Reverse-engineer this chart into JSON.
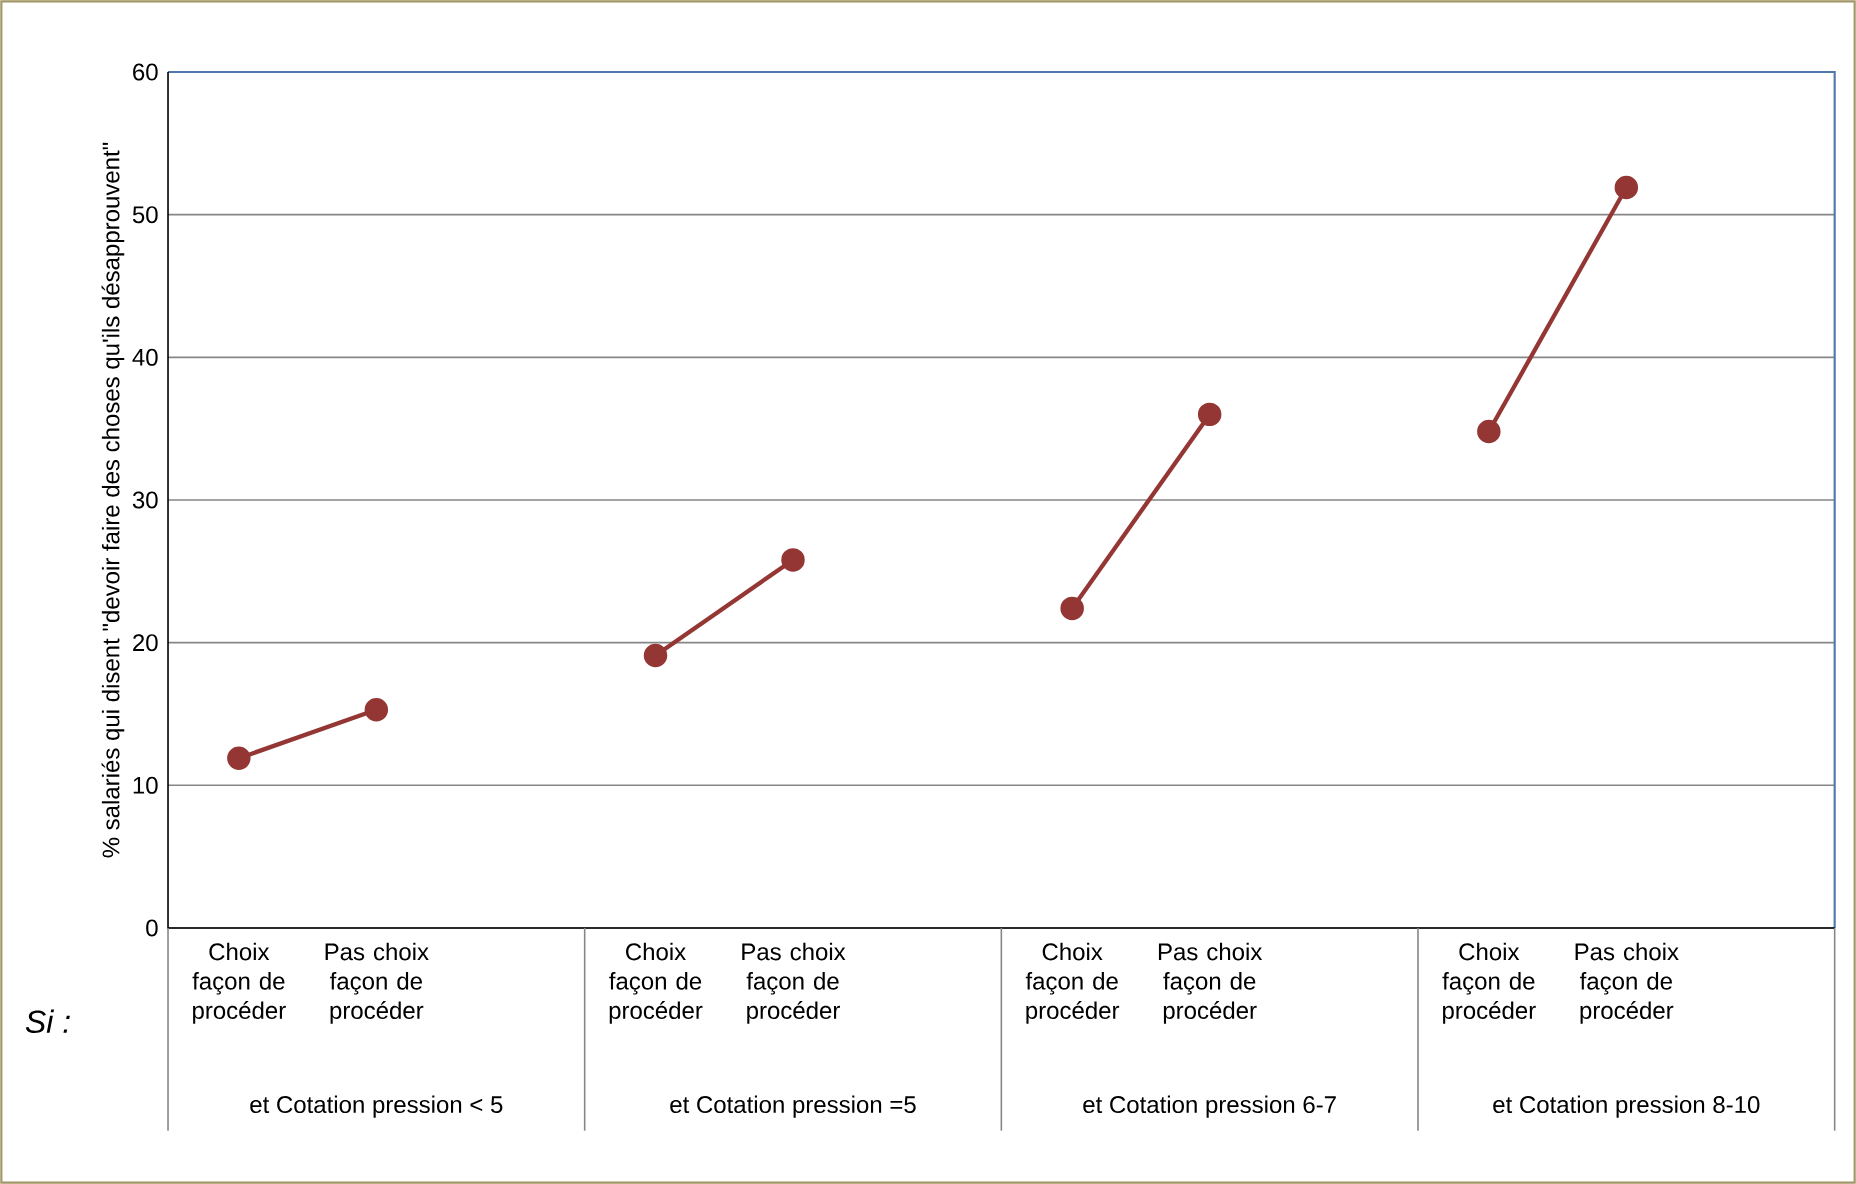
{
  "chart_data": {
    "type": "line",
    "ylabel": "% salariés qui disent \"devoir faire des choses qu'ils désapprouvent\"",
    "categories": [
      "Choix façon de procéder",
      "Pas choix façon de procéder",
      "Choix façon de procéder",
      "Pas choix façon de procéder",
      "Choix façon de procéder",
      "Pas choix façon de procéder",
      "Choix façon de procéder",
      "Pas choix façon de procéder"
    ],
    "series": [
      {
        "color": "#943634",
        "values": [
          11.9,
          15.3,
          null,
          null,
          null,
          null,
          null,
          null
        ]
      },
      {
        "color": "#943634",
        "values": [
          null,
          null,
          19.1,
          25.8,
          null,
          null,
          null,
          null
        ]
      },
      {
        "color": "#943634",
        "values": [
          null,
          null,
          null,
          null,
          22.4,
          36.0,
          null,
          null
        ]
      },
      {
        "color": "#943634",
        "values": [
          null,
          null,
          null,
          null,
          null,
          null,
          34.8,
          51.9
        ]
      }
    ],
    "ylim": [
      0,
      60
    ],
    "yticks": [
      0,
      10,
      20,
      30,
      40,
      50,
      60
    ],
    "grid": "y",
    "marker": "circle",
    "line_style": "solid",
    "annotations": [
      "Si :",
      "et Cotation pression < 5",
      "et Cotation pression =5",
      "et Cotation pression 6-7",
      "et Cotation pression 8-10"
    ]
  }
}
